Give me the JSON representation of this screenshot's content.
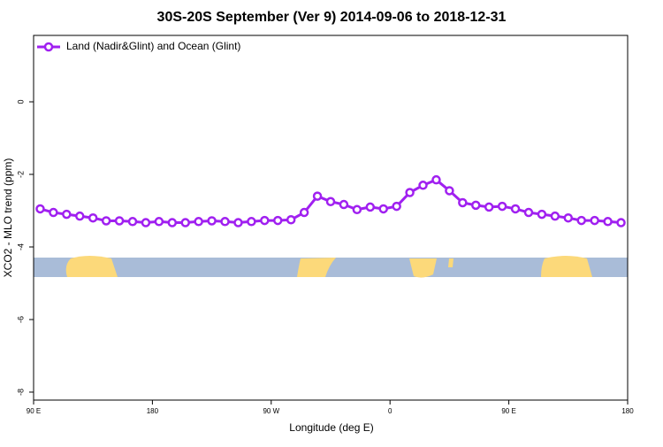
{
  "chart_data": {
    "type": "line",
    "title": "30S-20S September (Ver 9)   2014-09-06 to 2018-12-31",
    "x_label": "Longitude (deg E)",
    "y_label": "XCO2 - MLO trend (ppm)",
    "x": [
      95,
      105,
      115,
      125,
      135,
      145,
      155,
      165,
      175,
      185,
      195,
      205,
      215,
      225,
      235,
      245,
      255,
      265,
      275,
      285,
      295,
      305,
      315,
      325,
      335,
      345,
      355,
      365,
      375,
      385,
      395,
      405,
      415,
      425,
      435,
      445,
      455,
      465,
      475,
      485,
      495,
      505,
      515,
      525,
      535
    ],
    "series": [
      {
        "name": "Land (Nadir&Glint) and Ocean (Glint)",
        "color": "#a020f0",
        "values": [
          -2.95,
          -3.05,
          -3.1,
          -3.15,
          -3.2,
          -3.28,
          -3.28,
          -3.3,
          -3.33,
          -3.3,
          -3.33,
          -3.33,
          -3.3,
          -3.28,
          -3.3,
          -3.33,
          -3.3,
          -3.27,
          -3.27,
          -3.25,
          -3.05,
          -2.6,
          -2.75,
          -2.83,
          -2.97,
          -2.9,
          -2.95,
          -2.88,
          -2.5,
          -2.3,
          -2.15,
          -2.45,
          -2.78,
          -2.85,
          -2.9,
          -2.88,
          -2.95,
          -3.05,
          -3.1,
          -3.15,
          -3.2,
          -3.27,
          -3.27,
          -3.3,
          -3.33
        ]
      }
    ],
    "xlim": [
      90,
      540
    ],
    "xticks": [
      {
        "value": 90,
        "label": "90 E"
      },
      180,
      {
        "value": 270,
        "label": "90 W"
      },
      {
        "value": 360,
        "label": "0"
      },
      {
        "value": 450,
        "label": "90 E"
      },
      {
        "value": 540,
        "label": "180"
      }
    ],
    "ylim": [
      -8.22,
      1.83
    ],
    "yticks": [
      0,
      -2,
      -4,
      -6,
      -8
    ],
    "legend": "top-left"
  }
}
